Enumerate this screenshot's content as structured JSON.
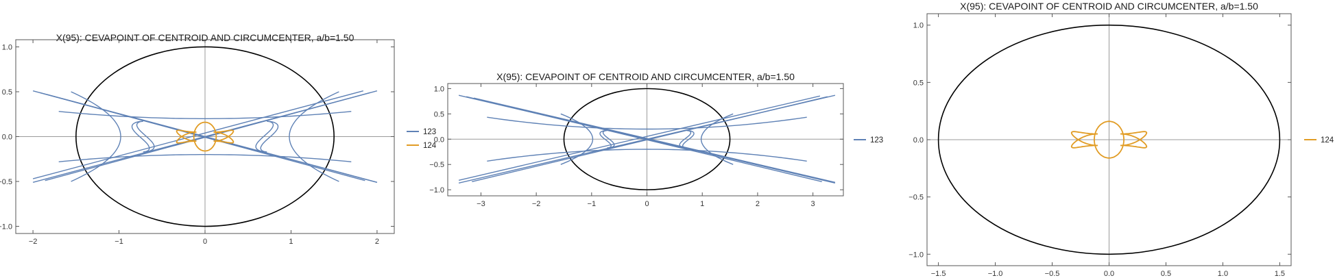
{
  "chart_data": [
    {
      "type": "line",
      "title": "X(95): CEVAPOINT OF CENTROID AND CIRCUMCENTER, a/b=1.50",
      "xlabel": "",
      "ylabel": "",
      "xlim": [
        -2.2,
        2.2
      ],
      "ylim": [
        -1.08,
        1.08
      ],
      "xticks": [
        -2,
        -1,
        0,
        1,
        2
      ],
      "yticks": [
        -1.0,
        -0.5,
        0.0,
        0.5,
        1.0
      ],
      "legend_position": "right",
      "legend": [
        "123",
        "124"
      ],
      "ellipse": {
        "a": 1.5,
        "b": 1.0,
        "color": "#000000"
      },
      "series": [
        {
          "name": "123",
          "color": "#5e81b5",
          "kind": "x123",
          "extent": 2.0
        },
        {
          "name": "124",
          "color": "#e19c24",
          "kind": "x124"
        }
      ]
    },
    {
      "type": "line",
      "title": "X(95): CEVAPOINT OF CENTROID AND CIRCUMCENTER, a/b=1.50",
      "xlabel": "",
      "ylabel": "",
      "xlim": [
        -3.6,
        3.55
      ],
      "ylim": [
        -1.12,
        1.1
      ],
      "xticks": [
        -3,
        -2,
        -1,
        0,
        1,
        2,
        3
      ],
      "yticks": [
        -1.0,
        -0.5,
        0.0,
        0.5,
        1.0
      ],
      "legend_position": "right",
      "legend": [
        "123"
      ],
      "ellipse": {
        "a": 1.5,
        "b": 1.0,
        "color": "#000000"
      },
      "series": [
        {
          "name": "123",
          "color": "#5e81b5",
          "kind": "x123",
          "extent": 3.4
        }
      ]
    },
    {
      "type": "line",
      "title": "X(95): CEVAPOINT OF CENTROID AND CIRCUMCENTER, a/b=1.50",
      "xlabel": "",
      "ylabel": "",
      "xlim": [
        -1.6,
        1.6
      ],
      "ylim": [
        -1.1,
        1.1
      ],
      "xticks": [
        -1.5,
        -1.0,
        -0.5,
        0.0,
        0.5,
        1.0,
        1.5
      ],
      "yticks": [
        -1.0,
        -0.5,
        0.0,
        0.5,
        1.0
      ],
      "legend_position": "right",
      "legend": [
        "124"
      ],
      "ellipse": {
        "a": 1.5,
        "b": 1.0,
        "color": "#000000"
      },
      "series": [
        {
          "name": "124",
          "color": "#e19c24",
          "kind": "x124"
        }
      ]
    }
  ]
}
